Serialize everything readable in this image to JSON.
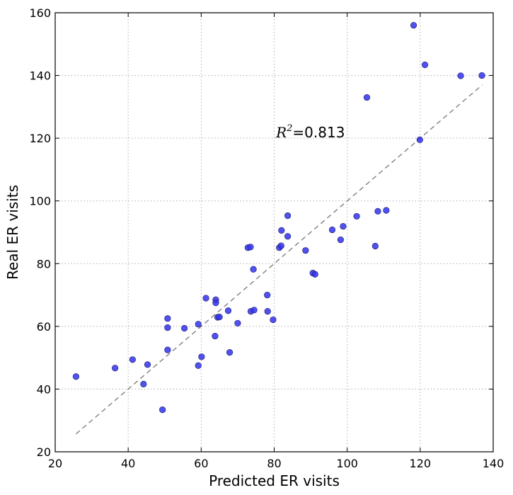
{
  "chart_data": {
    "type": "scatter",
    "title": "",
    "xlabel": "Predicted ER visits",
    "ylabel": "Real ER visits",
    "xlim": [
      20,
      140
    ],
    "ylim": [
      20,
      160
    ],
    "xticks": [
      "20",
      "40",
      "60",
      "80",
      "100",
      "120",
      "140"
    ],
    "yticks": [
      "20",
      "40",
      "60",
      "80",
      "100",
      "120",
      "140",
      "160"
    ],
    "grid": true,
    "annotation": {
      "r2_symbol": "R",
      "r2_exponent": "2",
      "r2_value": "=0.813",
      "x": 80.5,
      "y": 120
    },
    "fit_line": {
      "x": [
        25.7,
        137
      ],
      "y": [
        25.7,
        137
      ],
      "style": "dashed",
      "color": "#777777"
    },
    "marker_color": "#3333ee",
    "series": [
      {
        "points": [
          [
            25.7,
            44
          ],
          [
            36.4,
            46.7
          ],
          [
            41.2,
            49.4
          ],
          [
            44.2,
            41.6
          ],
          [
            45.3,
            47.8
          ],
          [
            49.4,
            33.4
          ],
          [
            50.8,
            52.5
          ],
          [
            50.8,
            59.6
          ],
          [
            50.8,
            62.5
          ],
          [
            55.4,
            59.4
          ],
          [
            59.2,
            60.7
          ],
          [
            59.2,
            47.5
          ],
          [
            60.1,
            50.3
          ],
          [
            61.3,
            69
          ],
          [
            63.8,
            56.9
          ],
          [
            64.0,
            68.5
          ],
          [
            64.0,
            67.5
          ],
          [
            64.5,
            62.9
          ],
          [
            65.0,
            63
          ],
          [
            67.4,
            65
          ],
          [
            67.8,
            51.7
          ],
          [
            70.0,
            61
          ],
          [
            72.8,
            85.1
          ],
          [
            73.5,
            85.3
          ],
          [
            73.6,
            64.8
          ],
          [
            74.3,
            78.2
          ],
          [
            74.5,
            65.2
          ],
          [
            78.1,
            70
          ],
          [
            78.2,
            64.8
          ],
          [
            79.7,
            62.1
          ],
          [
            81.4,
            85.1
          ],
          [
            81.9,
            85.7
          ],
          [
            82.0,
            90.6
          ],
          [
            83.7,
            88.7
          ],
          [
            83.7,
            95.3
          ],
          [
            88.6,
            84.2
          ],
          [
            90.6,
            77
          ],
          [
            91.2,
            76.6
          ],
          [
            95.9,
            90.8
          ],
          [
            98.2,
            87.6
          ],
          [
            98.9,
            91.9
          ],
          [
            102.6,
            95.1
          ],
          [
            105.4,
            133
          ],
          [
            107.7,
            85.6
          ],
          [
            108.4,
            96.7
          ],
          [
            110.7,
            97
          ],
          [
            118.2,
            156
          ],
          [
            119.9,
            119.5
          ],
          [
            121.3,
            143.4
          ],
          [
            131.1,
            139.9
          ],
          [
            136.9,
            140
          ]
        ]
      }
    ]
  }
}
